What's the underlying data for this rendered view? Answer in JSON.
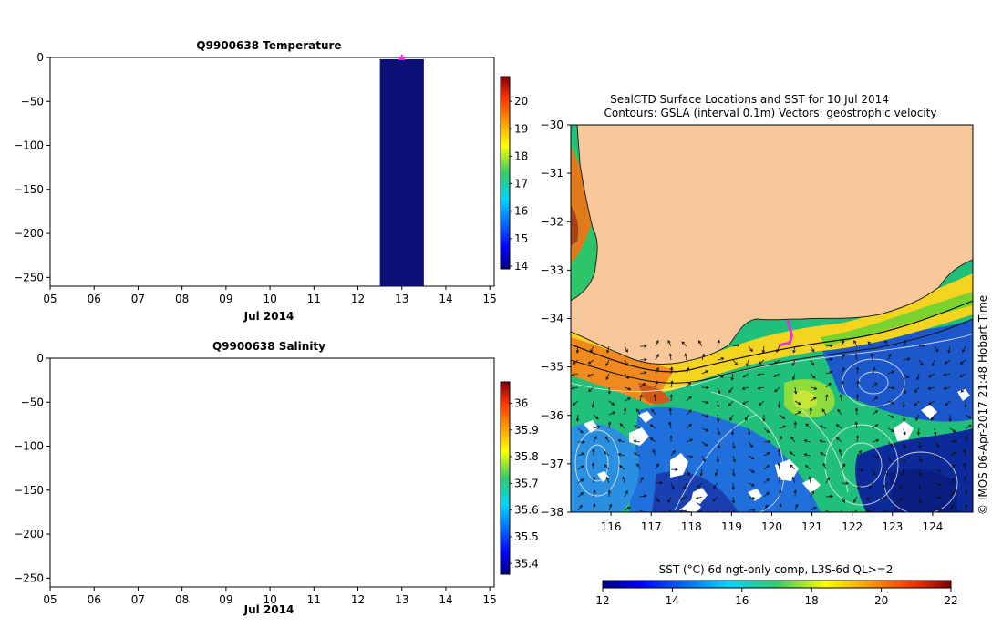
{
  "chart_data": [
    {
      "type": "heatmap",
      "title": "Q9900638  Temperature",
      "xlabel": "Jul 2014",
      "ylabel": "",
      "x_ticks": [
        "05",
        "06",
        "07",
        "08",
        "09",
        "10",
        "11",
        "12",
        "13",
        "14",
        "15"
      ],
      "xlim": [
        5,
        15.1
      ],
      "y_ticks": [
        0,
        -50,
        -100,
        -150,
        -200,
        -250
      ],
      "ylim": [
        -260,
        0
      ],
      "profiles": [
        {
          "day": 13,
          "depth_top": -2,
          "depth_bottom": -260,
          "color": "#0b0f78"
        }
      ],
      "surface_marker": {
        "day": 13,
        "depth": 0,
        "color": "#e62ee6"
      },
      "colorbar": {
        "ticks": [
          14,
          15,
          16,
          17,
          18,
          19,
          20
        ],
        "range": [
          13.9,
          20.9
        ]
      }
    },
    {
      "type": "heatmap",
      "title": "Q9900638  Salinity",
      "xlabel": "Jul 2014",
      "ylabel": "",
      "x_ticks": [
        "05",
        "06",
        "07",
        "08",
        "09",
        "10",
        "11",
        "12",
        "13",
        "14",
        "15"
      ],
      "xlim": [
        5,
        15.1
      ],
      "y_ticks": [
        0,
        -50,
        -100,
        -150,
        -200,
        -250
      ],
      "ylim": [
        -260,
        0
      ],
      "profiles": [],
      "colorbar": {
        "ticks": [
          35.4,
          35.5,
          35.6,
          35.7,
          35.8,
          35.9,
          36
        ],
        "range": [
          35.36,
          36.08
        ]
      }
    },
    {
      "type": "heatmap",
      "title": "SealCTD Surface Locations and SST for 10 Jul 2014",
      "subtitle": "Contours: GSLA (interval 0.1m)  Vectors: geostrophic velocity",
      "x_ticks": [
        116,
        117,
        118,
        119,
        120,
        121,
        122,
        123,
        124
      ],
      "xlim": [
        115,
        125
      ],
      "y_ticks": [
        -30,
        -31,
        -32,
        -33,
        -34,
        -35,
        -36,
        -37,
        -38
      ],
      "ylim": [
        -38,
        -30
      ],
      "colorbar": {
        "label": "SST (°C) 6d ngt-only comp, L3S-6d QL>=2",
        "ticks": [
          12,
          14,
          16,
          18,
          20,
          22
        ],
        "range": [
          12,
          22
        ]
      },
      "side_text": "© IMOS 06-Apr-2017 21:48 Hobart Time",
      "land_color": "#f9c89a",
      "track_color": "#e62ee6",
      "track": [
        [
          120.4,
          -34.05
        ],
        [
          120.45,
          -34.2
        ],
        [
          120.5,
          -34.35
        ],
        [
          120.45,
          -34.5
        ],
        [
          120.2,
          -34.55
        ]
      ]
    }
  ]
}
